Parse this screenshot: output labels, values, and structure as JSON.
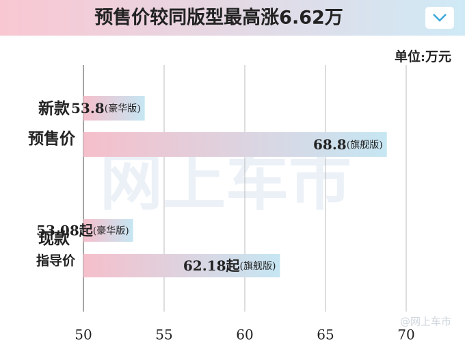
{
  "chart_data": {
    "type": "bar",
    "orientation": "horizontal",
    "title": "预售价较同版型最高涨6.62万",
    "unit": "单位:万元",
    "groups": [
      {
        "lines": [
          "新款",
          "预售价"
        ]
      },
      {
        "lines": [
          "现款",
          "指导价"
        ]
      }
    ],
    "categories": [
      "(豪华版)",
      "(旗舰版)",
      "(豪华版)",
      "(旗舰版)"
    ],
    "values": [
      53.8,
      68.8,
      53.08,
      62.18
    ],
    "value_labels": [
      "53.8",
      "68.8",
      "53.08起",
      "62.18起"
    ],
    "colors": [
      "#f5bfcb",
      "#c6e6f3"
    ],
    "xlim": [
      50,
      70
    ],
    "xticks": [
      50,
      55,
      60,
      65,
      70
    ],
    "grid": true,
    "watermark": "网上车市",
    "credit": "@网上车市"
  }
}
